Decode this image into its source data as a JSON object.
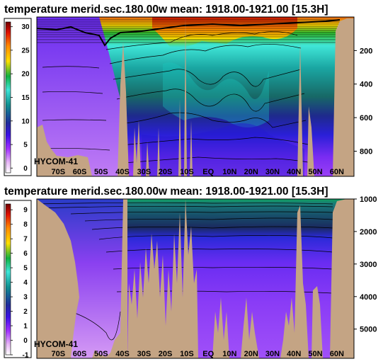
{
  "chart_data": [
    {
      "type": "heatmap",
      "title": "temperature merid.sec.180.00w  mean: 1918.00-1921.00 [15.3H]",
      "variable": "temperature",
      "section": "meridional section at 180.00W",
      "model_label": "HYCOM-41",
      "x_tick_labels": [
        "70S",
        "60S",
        "50S",
        "40S",
        "30S",
        "20S",
        "10S",
        "EQ",
        "10N",
        "20N",
        "30N",
        "40N",
        "50N",
        "60N"
      ],
      "x_tick_values": [
        -70,
        -60,
        -50,
        -40,
        -30,
        -20,
        -10,
        0,
        10,
        20,
        30,
        40,
        50,
        60
      ],
      "xlim": [
        -80,
        68
      ],
      "y_tick_labels": [
        "200",
        "400",
        "600",
        "800"
      ],
      "y_tick_values": [
        200,
        400,
        600,
        800
      ],
      "ylim": [
        0,
        950
      ],
      "colorbar_tick_labels": [
        "0",
        "5",
        "10",
        "15",
        "20",
        "25",
        "30"
      ],
      "colorbar_tick_values": [
        0,
        5,
        10,
        15,
        20,
        25,
        30
      ],
      "colorbar_range": [
        -1,
        31
      ],
      "colors": {
        "land": "#c4a484",
        "contour": "#000000"
      }
    },
    {
      "type": "heatmap",
      "title": "temperature merid.sec.180.00w  mean: 1918.00-1921.00 [15.3H]",
      "variable": "temperature",
      "section": "meridional section at 180.00W",
      "model_label": "HYCOM-41",
      "x_tick_labels": [
        "70S",
        "60S",
        "50S",
        "40S",
        "30S",
        "20S",
        "10S",
        "EQ",
        "10N",
        "20N",
        "30N",
        "40N",
        "50N",
        "60N"
      ],
      "x_tick_values": [
        -70,
        -60,
        -50,
        -40,
        -30,
        -20,
        -10,
        0,
        10,
        20,
        30,
        40,
        50,
        60
      ],
      "xlim": [
        -80,
        68
      ],
      "y_tick_labels": [
        "1000",
        "2000",
        "3000",
        "4000",
        "5000"
      ],
      "y_tick_values": [
        1000,
        2000,
        3000,
        4000,
        5000
      ],
      "ylim": [
        1000,
        5900
      ],
      "colorbar_tick_labels": [
        "-1",
        "0",
        "1",
        "2",
        "3",
        "4",
        "5",
        "6",
        "7",
        "8",
        "9"
      ],
      "colorbar_tick_values": [
        -1,
        0,
        1,
        2,
        3,
        4,
        5,
        6,
        7,
        8,
        9
      ],
      "colorbar_range": [
        -1,
        9.4
      ],
      "colors": {
        "land": "#c4a484",
        "contour": "#000000"
      }
    }
  ]
}
